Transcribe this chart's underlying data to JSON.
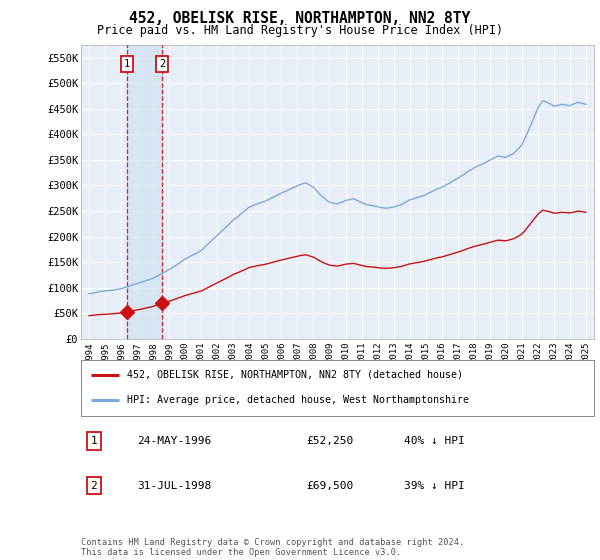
{
  "title": "452, OBELISK RISE, NORTHAMPTON, NN2 8TY",
  "subtitle": "Price paid vs. HM Land Registry's House Price Index (HPI)",
  "ylabel_ticks": [
    "£0",
    "£50K",
    "£100K",
    "£150K",
    "£200K",
    "£250K",
    "£300K",
    "£350K",
    "£400K",
    "£450K",
    "£500K",
    "£550K"
  ],
  "ytick_values": [
    0,
    50000,
    100000,
    150000,
    200000,
    250000,
    300000,
    350000,
    400000,
    450000,
    500000,
    550000
  ],
  "ylim": [
    0,
    575000
  ],
  "xlim_start": 1993.5,
  "xlim_end": 2025.5,
  "xtick_years": [
    1994,
    1995,
    1996,
    1997,
    1998,
    1999,
    2000,
    2001,
    2002,
    2003,
    2004,
    2005,
    2006,
    2007,
    2008,
    2009,
    2010,
    2011,
    2012,
    2013,
    2014,
    2015,
    2016,
    2017,
    2018,
    2019,
    2020,
    2021,
    2022,
    2023,
    2024,
    2025
  ],
  "sale1_x": 1996.39,
  "sale1_y": 52250,
  "sale2_x": 1998.58,
  "sale2_y": 69500,
  "sale1_date": "24-MAY-1996",
  "sale1_price": "£52,250",
  "sale1_hpi": "40% ↓ HPI",
  "sale2_date": "31-JUL-1998",
  "sale2_price": "£69,500",
  "sale2_hpi": "39% ↓ HPI",
  "legend_property": "452, OBELISK RISE, NORTHAMPTON, NN2 8TY (detached house)",
  "legend_hpi": "HPI: Average price, detached house, West Northamptonshire",
  "footer": "Contains HM Land Registry data © Crown copyright and database right 2024.\nThis data is licensed under the Open Government Licence v3.0.",
  "bg_color": "#e8eef8",
  "plot_bg": "#ffffff",
  "hpi_color": "#7aaadd",
  "property_color": "#cc1111",
  "vline_color": "#cc1111",
  "grid_color": "#cccccc",
  "shade_color": "#d0e0f0"
}
